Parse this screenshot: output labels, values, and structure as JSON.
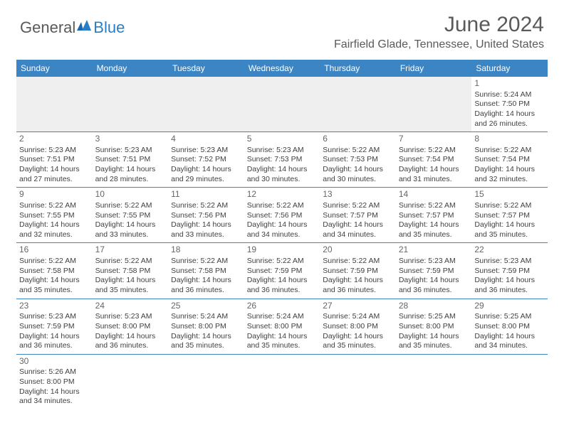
{
  "brand": {
    "part1": "General",
    "part2": "Blue"
  },
  "title": "June 2024",
  "location": "Fairfield Glade, Tennessee, United States",
  "header_bg": "#3b85c5",
  "weekdays": [
    "Sunday",
    "Monday",
    "Tuesday",
    "Wednesday",
    "Thursday",
    "Friday",
    "Saturday"
  ],
  "rows": [
    [
      {
        "empty": true
      },
      {
        "empty": true
      },
      {
        "empty": true
      },
      {
        "empty": true
      },
      {
        "empty": true
      },
      {
        "empty": true
      },
      {
        "day": "1",
        "sunrise": "Sunrise: 5:24 AM",
        "sunset": "Sunset: 7:50 PM",
        "daylight1": "Daylight: 14 hours",
        "daylight2": "and 26 minutes."
      }
    ],
    [
      {
        "day": "2",
        "sunrise": "Sunrise: 5:23 AM",
        "sunset": "Sunset: 7:51 PM",
        "daylight1": "Daylight: 14 hours",
        "daylight2": "and 27 minutes."
      },
      {
        "day": "3",
        "sunrise": "Sunrise: 5:23 AM",
        "sunset": "Sunset: 7:51 PM",
        "daylight1": "Daylight: 14 hours",
        "daylight2": "and 28 minutes."
      },
      {
        "day": "4",
        "sunrise": "Sunrise: 5:23 AM",
        "sunset": "Sunset: 7:52 PM",
        "daylight1": "Daylight: 14 hours",
        "daylight2": "and 29 minutes."
      },
      {
        "day": "5",
        "sunrise": "Sunrise: 5:23 AM",
        "sunset": "Sunset: 7:53 PM",
        "daylight1": "Daylight: 14 hours",
        "daylight2": "and 30 minutes."
      },
      {
        "day": "6",
        "sunrise": "Sunrise: 5:22 AM",
        "sunset": "Sunset: 7:53 PM",
        "daylight1": "Daylight: 14 hours",
        "daylight2": "and 30 minutes."
      },
      {
        "day": "7",
        "sunrise": "Sunrise: 5:22 AM",
        "sunset": "Sunset: 7:54 PM",
        "daylight1": "Daylight: 14 hours",
        "daylight2": "and 31 minutes."
      },
      {
        "day": "8",
        "sunrise": "Sunrise: 5:22 AM",
        "sunset": "Sunset: 7:54 PM",
        "daylight1": "Daylight: 14 hours",
        "daylight2": "and 32 minutes."
      }
    ],
    [
      {
        "day": "9",
        "sunrise": "Sunrise: 5:22 AM",
        "sunset": "Sunset: 7:55 PM",
        "daylight1": "Daylight: 14 hours",
        "daylight2": "and 32 minutes."
      },
      {
        "day": "10",
        "sunrise": "Sunrise: 5:22 AM",
        "sunset": "Sunset: 7:55 PM",
        "daylight1": "Daylight: 14 hours",
        "daylight2": "and 33 minutes."
      },
      {
        "day": "11",
        "sunrise": "Sunrise: 5:22 AM",
        "sunset": "Sunset: 7:56 PM",
        "daylight1": "Daylight: 14 hours",
        "daylight2": "and 33 minutes."
      },
      {
        "day": "12",
        "sunrise": "Sunrise: 5:22 AM",
        "sunset": "Sunset: 7:56 PM",
        "daylight1": "Daylight: 14 hours",
        "daylight2": "and 34 minutes."
      },
      {
        "day": "13",
        "sunrise": "Sunrise: 5:22 AM",
        "sunset": "Sunset: 7:57 PM",
        "daylight1": "Daylight: 14 hours",
        "daylight2": "and 34 minutes."
      },
      {
        "day": "14",
        "sunrise": "Sunrise: 5:22 AM",
        "sunset": "Sunset: 7:57 PM",
        "daylight1": "Daylight: 14 hours",
        "daylight2": "and 35 minutes."
      },
      {
        "day": "15",
        "sunrise": "Sunrise: 5:22 AM",
        "sunset": "Sunset: 7:57 PM",
        "daylight1": "Daylight: 14 hours",
        "daylight2": "and 35 minutes."
      }
    ],
    [
      {
        "day": "16",
        "sunrise": "Sunrise: 5:22 AM",
        "sunset": "Sunset: 7:58 PM",
        "daylight1": "Daylight: 14 hours",
        "daylight2": "and 35 minutes."
      },
      {
        "day": "17",
        "sunrise": "Sunrise: 5:22 AM",
        "sunset": "Sunset: 7:58 PM",
        "daylight1": "Daylight: 14 hours",
        "daylight2": "and 35 minutes."
      },
      {
        "day": "18",
        "sunrise": "Sunrise: 5:22 AM",
        "sunset": "Sunset: 7:58 PM",
        "daylight1": "Daylight: 14 hours",
        "daylight2": "and 36 minutes."
      },
      {
        "day": "19",
        "sunrise": "Sunrise: 5:22 AM",
        "sunset": "Sunset: 7:59 PM",
        "daylight1": "Daylight: 14 hours",
        "daylight2": "and 36 minutes."
      },
      {
        "day": "20",
        "sunrise": "Sunrise: 5:22 AM",
        "sunset": "Sunset: 7:59 PM",
        "daylight1": "Daylight: 14 hours",
        "daylight2": "and 36 minutes."
      },
      {
        "day": "21",
        "sunrise": "Sunrise: 5:23 AM",
        "sunset": "Sunset: 7:59 PM",
        "daylight1": "Daylight: 14 hours",
        "daylight2": "and 36 minutes."
      },
      {
        "day": "22",
        "sunrise": "Sunrise: 5:23 AM",
        "sunset": "Sunset: 7:59 PM",
        "daylight1": "Daylight: 14 hours",
        "daylight2": "and 36 minutes."
      }
    ],
    [
      {
        "day": "23",
        "sunrise": "Sunrise: 5:23 AM",
        "sunset": "Sunset: 7:59 PM",
        "daylight1": "Daylight: 14 hours",
        "daylight2": "and 36 minutes."
      },
      {
        "day": "24",
        "sunrise": "Sunrise: 5:23 AM",
        "sunset": "Sunset: 8:00 PM",
        "daylight1": "Daylight: 14 hours",
        "daylight2": "and 36 minutes."
      },
      {
        "day": "25",
        "sunrise": "Sunrise: 5:24 AM",
        "sunset": "Sunset: 8:00 PM",
        "daylight1": "Daylight: 14 hours",
        "daylight2": "and 35 minutes."
      },
      {
        "day": "26",
        "sunrise": "Sunrise: 5:24 AM",
        "sunset": "Sunset: 8:00 PM",
        "daylight1": "Daylight: 14 hours",
        "daylight2": "and 35 minutes."
      },
      {
        "day": "27",
        "sunrise": "Sunrise: 5:24 AM",
        "sunset": "Sunset: 8:00 PM",
        "daylight1": "Daylight: 14 hours",
        "daylight2": "and 35 minutes."
      },
      {
        "day": "28",
        "sunrise": "Sunrise: 5:25 AM",
        "sunset": "Sunset: 8:00 PM",
        "daylight1": "Daylight: 14 hours",
        "daylight2": "and 35 minutes."
      },
      {
        "day": "29",
        "sunrise": "Sunrise: 5:25 AM",
        "sunset": "Sunset: 8:00 PM",
        "daylight1": "Daylight: 14 hours",
        "daylight2": "and 34 minutes."
      }
    ],
    [
      {
        "day": "30",
        "sunrise": "Sunrise: 5:26 AM",
        "sunset": "Sunset: 8:00 PM",
        "daylight1": "Daylight: 14 hours",
        "daylight2": "and 34 minutes."
      },
      {
        "empty": true
      },
      {
        "empty": true
      },
      {
        "empty": true
      },
      {
        "empty": true
      },
      {
        "empty": true
      },
      {
        "empty": true
      }
    ]
  ]
}
